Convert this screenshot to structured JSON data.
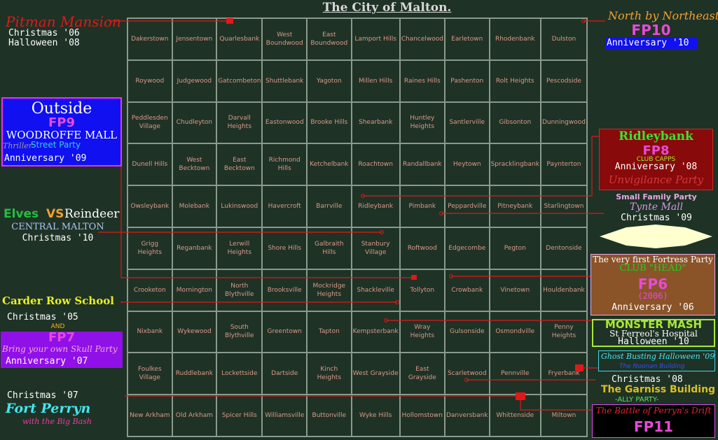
{
  "title": "The City of Malton.",
  "grid": [
    [
      "Dakerstown",
      "Jensentown",
      "Quarlesbank",
      "West Boundwood",
      "East Boundwood",
      "Lamport Hills",
      "Chancelwood",
      "Earletown",
      "Rhodenbank",
      "Dulston"
    ],
    [
      "Roywood",
      "Judgewood",
      "Gatcombeton",
      "Shuttlebank",
      "Yagoton",
      "Millen Hills",
      "Raines Hills",
      "Pashenton",
      "Rolt Heights",
      "Pescodside"
    ],
    [
      "Peddlesden Village",
      "Chudleyton",
      "Darvall Heights",
      "Eastonwood",
      "Brooke Hills",
      "Shearbank",
      "Huntley Heights",
      "Santlerville",
      "Gibsonton",
      "Dunningwood"
    ],
    [
      "Dunell Hills",
      "West Becktown",
      "East Becktown",
      "Richmond Hills",
      "Ketchelbank",
      "Roachtown",
      "Randallbank",
      "Heytown",
      "Spracklingbank",
      "Paynterton"
    ],
    [
      "Owsleybank",
      "Molebank",
      "Lukinswood",
      "Havercroft",
      "Barrville",
      "Ridleybank",
      "Pimbank",
      "Peppardville",
      "Pitneybank",
      "Starlingtown"
    ],
    [
      "Grigg Heights",
      "Reganbank",
      "Lerwill Heights",
      "Shore Hills",
      "Galbraith Hills",
      "Stanbury Village",
      "Roftwood",
      "Edgecombe",
      "Pegton",
      "Dentonside"
    ],
    [
      "Crooketon",
      "Mornington",
      "North Blythville",
      "Brooksville",
      "Mockridge Heights",
      "Shackleville",
      "Tollyton",
      "Crowbank",
      "Vinetown",
      "Houldenbank"
    ],
    [
      "Nixbank",
      "Wykewood",
      "South Blythville",
      "Greentown",
      "Tapton",
      "Kempsterbank",
      "Wray Heights",
      "Gulsonside",
      "Osmondville",
      "Penny Heights"
    ],
    [
      "Foulkes Village",
      "Ruddlebank",
      "Lockettside",
      "Dartside",
      "Kinch Heights",
      "West Grayside",
      "East Grayside",
      "Scarletwood",
      "Pennville",
      "Fryerbank"
    ],
    [
      "New Arkham",
      "Old Arkham",
      "Spicer Hills",
      "Williamsville",
      "Buttonville",
      "Wyke Hills",
      "Hollomstown",
      "Danversbank",
      "Whittenside",
      "Miltown"
    ]
  ],
  "annotations": {
    "pitman": {
      "name": "Pitman Mansion",
      "l1": "Christmas '06",
      "l2": "Halloween '08"
    },
    "outside": {
      "name": "Outside",
      "fp": "FP9",
      "mall": "WOODROFFE MALL",
      "party1": "Thriller",
      "party2": "Street Party",
      "anniv": "Anniversary '09"
    },
    "elves": {
      "a": "Elves",
      "vs": "VS",
      "b": "Reindeer",
      "loc": "CENTRAL MALTON",
      "when": "Christmas '10"
    },
    "carder": {
      "name": "Carder Row School",
      "when": "Christmas '05",
      "and": "AND",
      "fp": "FP7",
      "party": "Bring your own Skull Party",
      "anniv": "Anniversary '07"
    },
    "perryn": {
      "when": "Christmas '07",
      "name": "Fort Perryn",
      "sub": "with the Big Bash"
    },
    "nne": {
      "name": "North by Northeast",
      "fp": "FP10",
      "anniv": "Anniversary '10"
    },
    "ridley": {
      "name": "Ridleybank",
      "fp": "FP8",
      "club": "CLUB CAPPS",
      "anniv": "Anniversary '08",
      "party": "Unvigilance Party"
    },
    "tynte": {
      "party": "Small Family Party",
      "mall": "Tynte Mall",
      "when": "Christmas '09"
    },
    "head": {
      "first": "The very first Fortress Party",
      "club": "CLUB \"HEAD\"",
      "fp": "FP6",
      "year": "(2006)",
      "anniv": "Anniversary '06"
    },
    "monster": {
      "name": "MONSTER MASH",
      "hosp": "St Ferreol's Hospital",
      "when": "Halloween '10"
    },
    "ghost": {
      "name": "Ghost Busting Halloween '09",
      "bld": "The Noonan Building"
    },
    "garniss": {
      "when": "Christmas '08",
      "name": "The Garniss Building",
      "ally": "-ALLY PARTY-"
    },
    "drift": {
      "name": "The Battle of Perryn's Drift",
      "fp": "FP11"
    }
  },
  "colors": {
    "background": "#1f3226",
    "grid_line": "#8a9a8c",
    "suburb_text": "#d99a8a",
    "connector": "#e01818"
  }
}
